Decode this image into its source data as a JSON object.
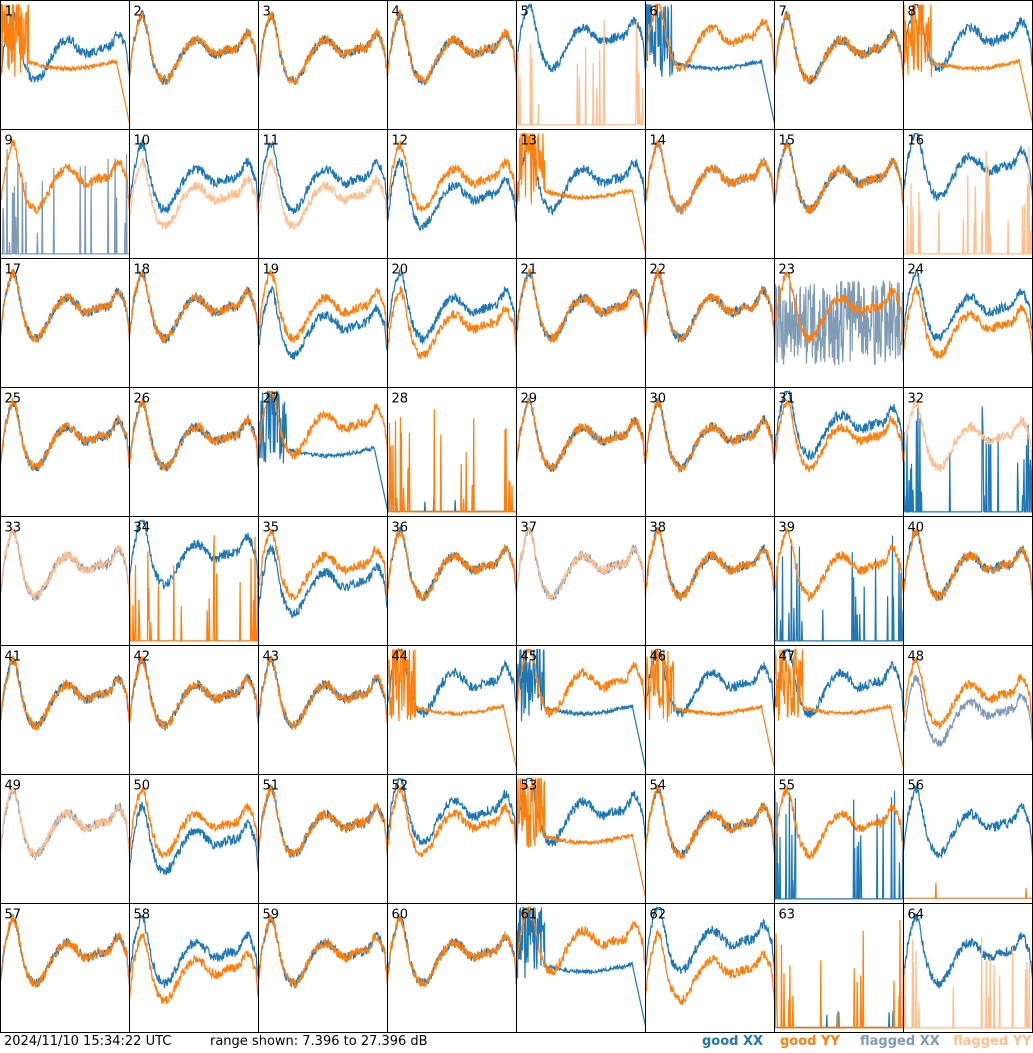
{
  "footer": {
    "timestamp": "2024/11/10 15:34:22 UTC",
    "range": "range shown: 7.396 to 27.396 dB"
  },
  "legend": [
    {
      "label": "good",
      "pol": "XX",
      "color": "#1f77b4"
    },
    {
      "label": "good",
      "pol": "YY",
      "color": "#ff7f0e"
    },
    {
      "label": "flagged",
      "pol": "XX",
      "color": "#7f9bb5"
    },
    {
      "label": "flagged",
      "pol": "YY",
      "color": "#ffbf8f"
    }
  ],
  "chart_data": {
    "type": "line",
    "grid": {
      "rows": 8,
      "cols": 8
    },
    "ylim": [
      7.396,
      27.396
    ],
    "unit": "dB",
    "series_colors": {
      "good_xx": "#1f77b4",
      "good_yy": "#ff7f0e",
      "flagged_xx": "#7f9bb5",
      "flagged_yy": "#ffbf8f"
    },
    "panels": [
      {
        "label": "1",
        "xx": "normal",
        "yy": "droop",
        "xx_flag": false,
        "yy_flag": false
      },
      {
        "label": "2",
        "xx": "normal",
        "yy": "normal",
        "xx_flag": false,
        "yy_flag": false
      },
      {
        "label": "3",
        "xx": "normal",
        "yy": "normal",
        "xx_flag": false,
        "yy_flag": false
      },
      {
        "label": "4",
        "xx": "normal",
        "yy": "normal",
        "xx_flag": false,
        "yy_flag": false
      },
      {
        "label": "5",
        "xx": "high",
        "yy": "spiky",
        "xx_flag": false,
        "yy_flag": true
      },
      {
        "label": "6",
        "xx": "droop",
        "yy": "high",
        "xx_flag": false,
        "yy_flag": false
      },
      {
        "label": "7",
        "xx": "normal",
        "yy": "normal",
        "xx_flag": false,
        "yy_flag": false
      },
      {
        "label": "8",
        "xx": "high",
        "yy": "droop",
        "xx_flag": false,
        "yy_flag": false
      },
      {
        "label": "9",
        "xx": "spiky",
        "yy": "normal",
        "xx_flag": true,
        "yy_flag": false
      },
      {
        "label": "10",
        "xx": "normal",
        "yy": "low",
        "xx_flag": false,
        "yy_flag": true
      },
      {
        "label": "11",
        "xx": "normal",
        "yy": "low",
        "xx_flag": false,
        "yy_flag": true
      },
      {
        "label": "12",
        "xx": "low",
        "yy": "normal",
        "xx_flag": false,
        "yy_flag": false
      },
      {
        "label": "13",
        "xx": "normal",
        "yy": "droop",
        "xx_flag": false,
        "yy_flag": false
      },
      {
        "label": "14",
        "xx": "normal",
        "yy": "normal",
        "xx_flag": true,
        "yy_flag": false
      },
      {
        "label": "15",
        "xx": "normal",
        "yy": "normal",
        "xx_flag": false,
        "yy_flag": false
      },
      {
        "label": "16",
        "xx": "high",
        "yy": "spiky",
        "xx_flag": false,
        "yy_flag": true
      },
      {
        "label": "17",
        "xx": "normal",
        "yy": "normal",
        "xx_flag": false,
        "yy_flag": false
      },
      {
        "label": "18",
        "xx": "normal",
        "yy": "normal",
        "xx_flag": false,
        "yy_flag": false
      },
      {
        "label": "19",
        "xx": "low",
        "yy": "normal",
        "xx_flag": false,
        "yy_flag": false
      },
      {
        "label": "20",
        "xx": "normal",
        "yy": "low",
        "xx_flag": false,
        "yy_flag": false
      },
      {
        "label": "21",
        "xx": "normal",
        "yy": "normal",
        "xx_flag": false,
        "yy_flag": false
      },
      {
        "label": "22",
        "xx": "normal",
        "yy": "normal",
        "xx_flag": false,
        "yy_flag": false
      },
      {
        "label": "23",
        "xx": "noise",
        "yy": "normal",
        "xx_flag": true,
        "yy_flag": false
      },
      {
        "label": "24",
        "xx": "normal",
        "yy": "low",
        "xx_flag": false,
        "yy_flag": false
      },
      {
        "label": "25",
        "xx": "normal",
        "yy": "normal",
        "xx_flag": false,
        "yy_flag": false
      },
      {
        "label": "26",
        "xx": "normal",
        "yy": "normal",
        "xx_flag": false,
        "yy_flag": false
      },
      {
        "label": "27",
        "xx": "droop",
        "yy": "high",
        "xx_flag": false,
        "yy_flag": false
      },
      {
        "label": "28",
        "xx": "flat",
        "yy": "spiky",
        "xx_flag": false,
        "yy_flag": false
      },
      {
        "label": "29",
        "xx": "normal",
        "yy": "normal",
        "xx_flag": false,
        "yy_flag": false
      },
      {
        "label": "30",
        "xx": "normal",
        "yy": "normal",
        "xx_flag": false,
        "yy_flag": false
      },
      {
        "label": "31",
        "xx": "high",
        "yy": "normal",
        "xx_flag": false,
        "yy_flag": false
      },
      {
        "label": "32",
        "xx": "spiky",
        "yy": "normal",
        "xx_flag": false,
        "yy_flag": true
      },
      {
        "label": "33",
        "xx": "normal",
        "yy": "normal",
        "xx_flag": true,
        "yy_flag": true
      },
      {
        "label": "34",
        "xx": "high",
        "yy": "spiky",
        "xx_flag": false,
        "yy_flag": false
      },
      {
        "label": "35",
        "xx": "low",
        "yy": "normal",
        "xx_flag": false,
        "yy_flag": false
      },
      {
        "label": "36",
        "xx": "normal",
        "yy": "normal",
        "xx_flag": false,
        "yy_flag": false
      },
      {
        "label": "37",
        "xx": "normal",
        "yy": "normal",
        "xx_flag": true,
        "yy_flag": true
      },
      {
        "label": "38",
        "xx": "normal",
        "yy": "normal",
        "xx_flag": false,
        "yy_flag": false
      },
      {
        "label": "39",
        "xx": "spiky",
        "yy": "normal",
        "xx_flag": false,
        "yy_flag": false
      },
      {
        "label": "40",
        "xx": "normal",
        "yy": "normal",
        "xx_flag": false,
        "yy_flag": false
      },
      {
        "label": "41",
        "xx": "normal",
        "yy": "normal",
        "xx_flag": false,
        "yy_flag": false
      },
      {
        "label": "42",
        "xx": "normal",
        "yy": "normal",
        "xx_flag": false,
        "yy_flag": false
      },
      {
        "label": "43",
        "xx": "normal",
        "yy": "normal",
        "xx_flag": false,
        "yy_flag": false
      },
      {
        "label": "44",
        "xx": "high",
        "yy": "droop",
        "xx_flag": false,
        "yy_flag": false
      },
      {
        "label": "45",
        "xx": "droop",
        "yy": "high",
        "xx_flag": false,
        "yy_flag": false
      },
      {
        "label": "46",
        "xx": "high",
        "yy": "droop",
        "xx_flag": false,
        "yy_flag": false
      },
      {
        "label": "47",
        "xx": "high",
        "yy": "droop",
        "xx_flag": false,
        "yy_flag": false
      },
      {
        "label": "48",
        "xx": "low",
        "yy": "normal",
        "xx_flag": true,
        "yy_flag": false
      },
      {
        "label": "49",
        "xx": "normal",
        "yy": "normal",
        "xx_flag": true,
        "yy_flag": true
      },
      {
        "label": "50",
        "xx": "low",
        "yy": "normal",
        "xx_flag": false,
        "yy_flag": false
      },
      {
        "label": "51",
        "xx": "normal",
        "yy": "normal",
        "xx_flag": false,
        "yy_flag": false
      },
      {
        "label": "52",
        "xx": "high",
        "yy": "normal",
        "xx_flag": false,
        "yy_flag": false
      },
      {
        "label": "53",
        "xx": "high",
        "yy": "droop",
        "xx_flag": false,
        "yy_flag": false
      },
      {
        "label": "54",
        "xx": "normal",
        "yy": "normal",
        "xx_flag": false,
        "yy_flag": false
      },
      {
        "label": "55",
        "xx": "spiky",
        "yy": "normal",
        "xx_flag": false,
        "yy_flag": false
      },
      {
        "label": "56",
        "xx": "normal",
        "yy": "flat",
        "xx_flag": false,
        "yy_flag": false
      },
      {
        "label": "57",
        "xx": "normal",
        "yy": "normal",
        "xx_flag": false,
        "yy_flag": false
      },
      {
        "label": "58",
        "xx": "normal",
        "yy": "low",
        "xx_flag": false,
        "yy_flag": false
      },
      {
        "label": "59",
        "xx": "normal",
        "yy": "normal",
        "xx_flag": false,
        "yy_flag": false
      },
      {
        "label": "60",
        "xx": "normal",
        "yy": "normal",
        "xx_flag": false,
        "yy_flag": false
      },
      {
        "label": "61",
        "xx": "droop",
        "yy": "high",
        "xx_flag": false,
        "yy_flag": false
      },
      {
        "label": "62",
        "xx": "high",
        "yy": "low",
        "xx_flag": false,
        "yy_flag": false
      },
      {
        "label": "63",
        "xx": "flat",
        "yy": "spiky",
        "xx_flag": false,
        "yy_flag": false
      },
      {
        "label": "64",
        "xx": "normal",
        "yy": "spiky",
        "xx_flag": false,
        "yy_flag": true
      }
    ]
  }
}
